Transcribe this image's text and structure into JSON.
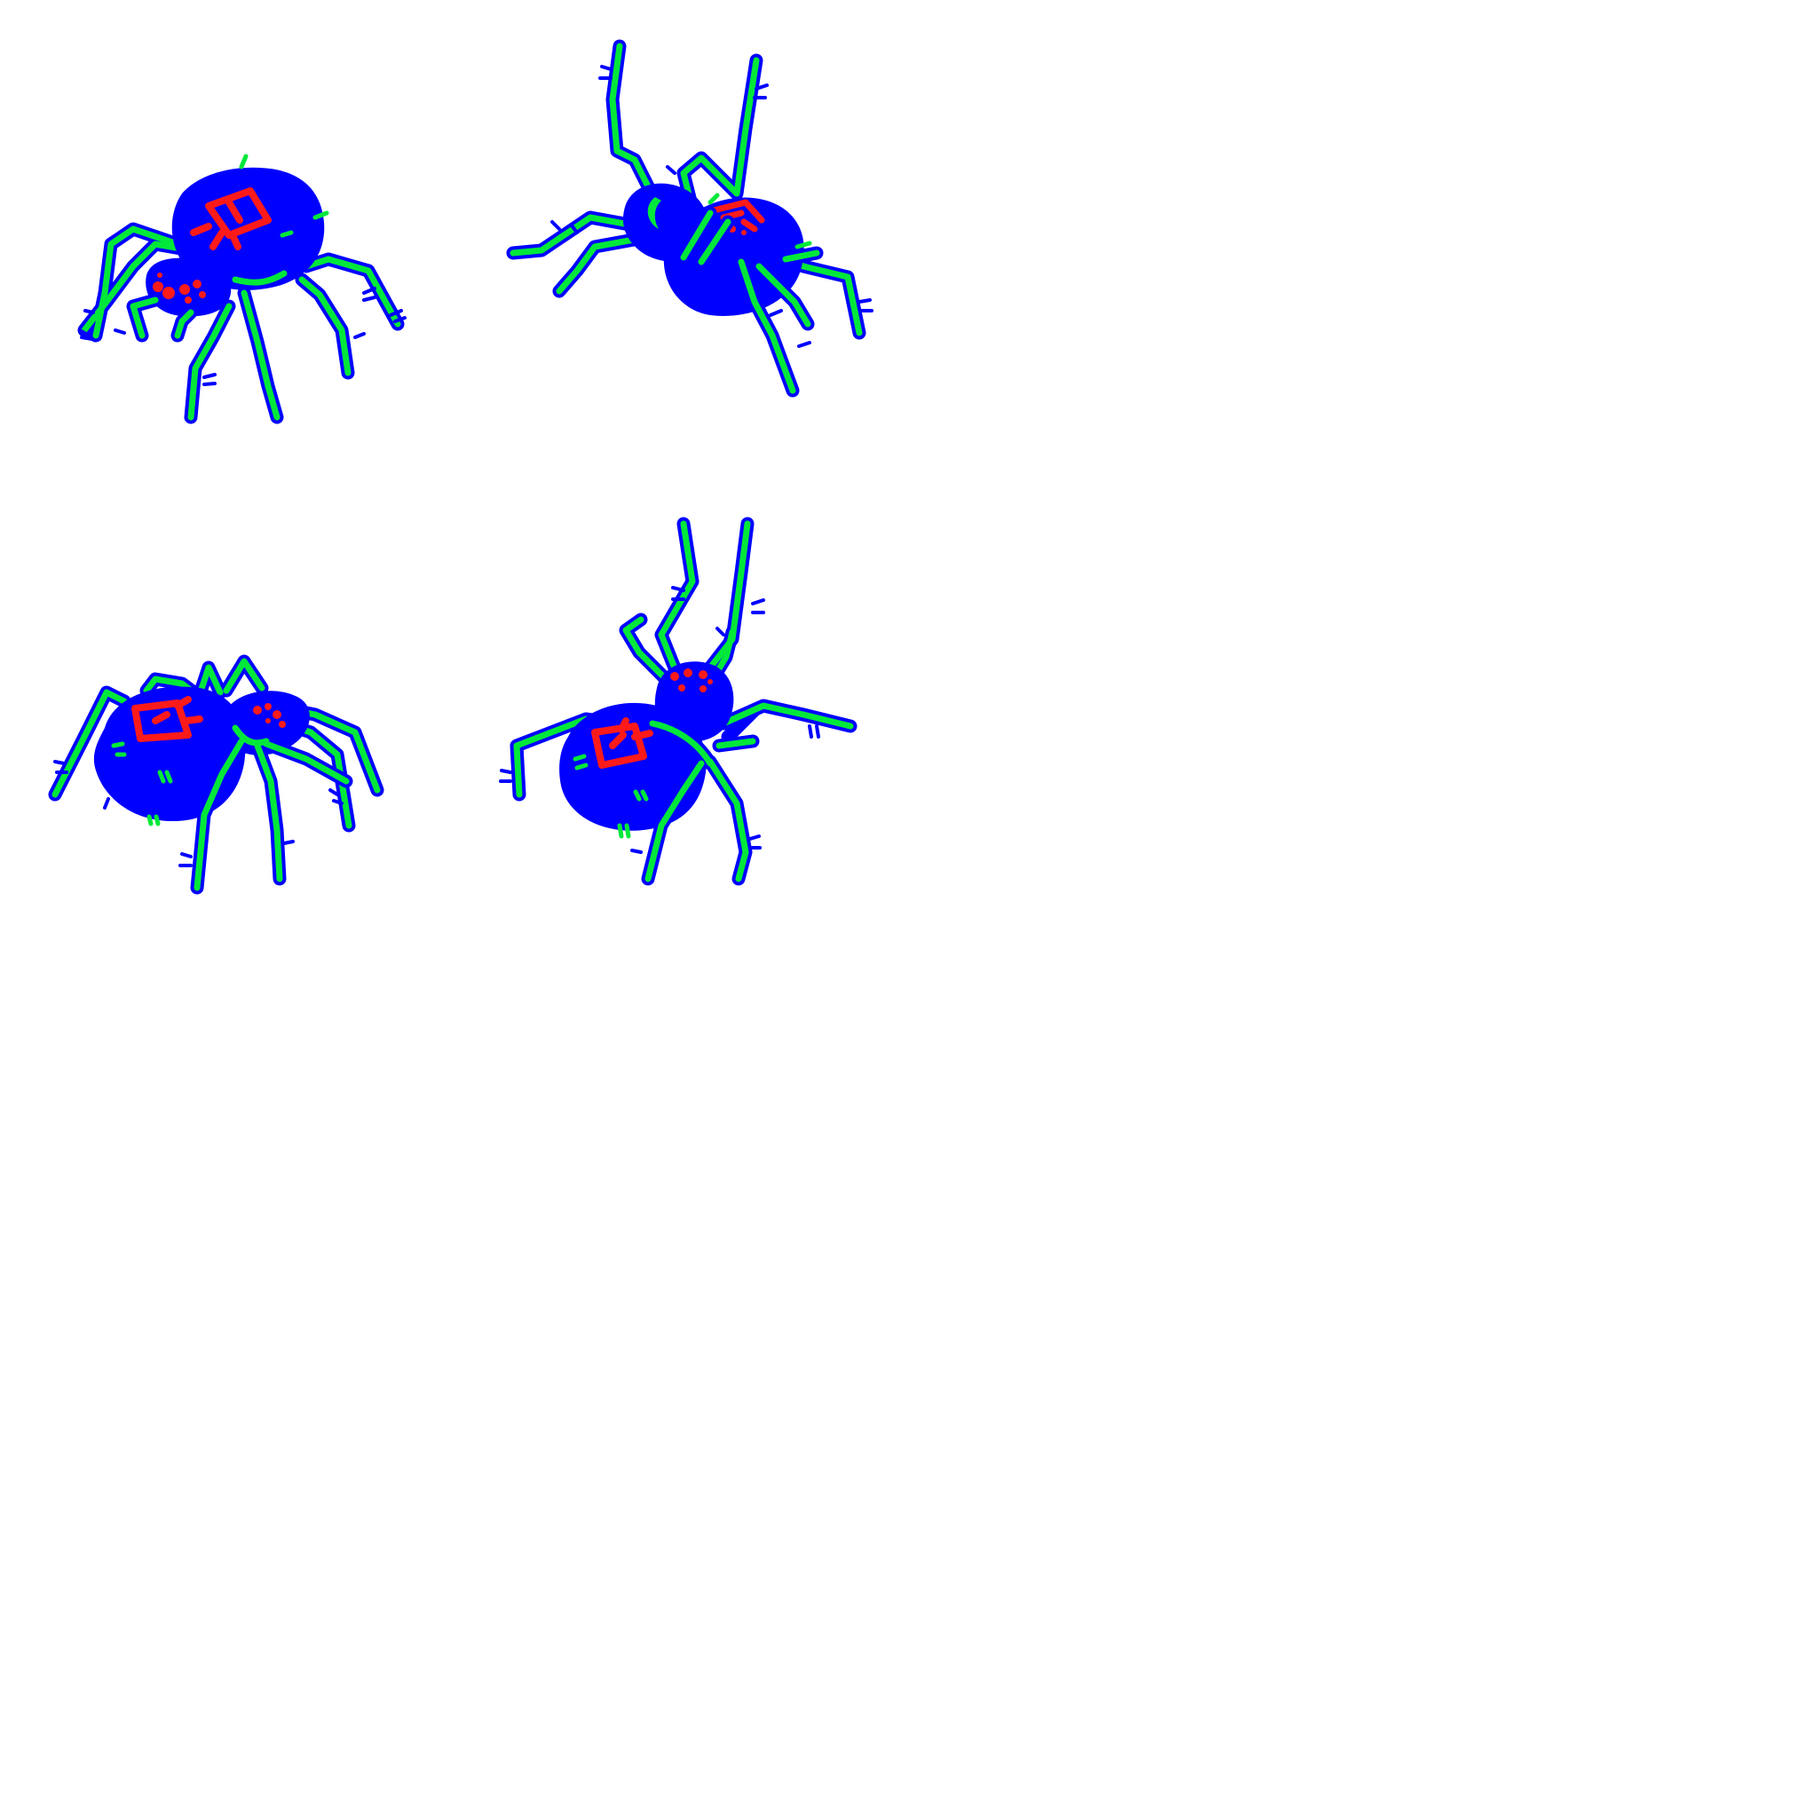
{
  "sprite_sheet": {
    "background": "#ffffff",
    "colors": {
      "body": "#0000ff",
      "legs": "#00e83a",
      "markings": "#ff1a1a"
    },
    "frames": [
      {
        "pose": "front-three-quarter",
        "icon": "spider-sprite-icon"
      },
      {
        "pose": "rear-three-quarter-legs-raised",
        "icon": "spider-sprite-icon"
      },
      {
        "pose": "side",
        "icon": "spider-sprite-icon"
      },
      {
        "pose": "top-down-legs-raised",
        "icon": "spider-sprite-icon"
      }
    ]
  }
}
